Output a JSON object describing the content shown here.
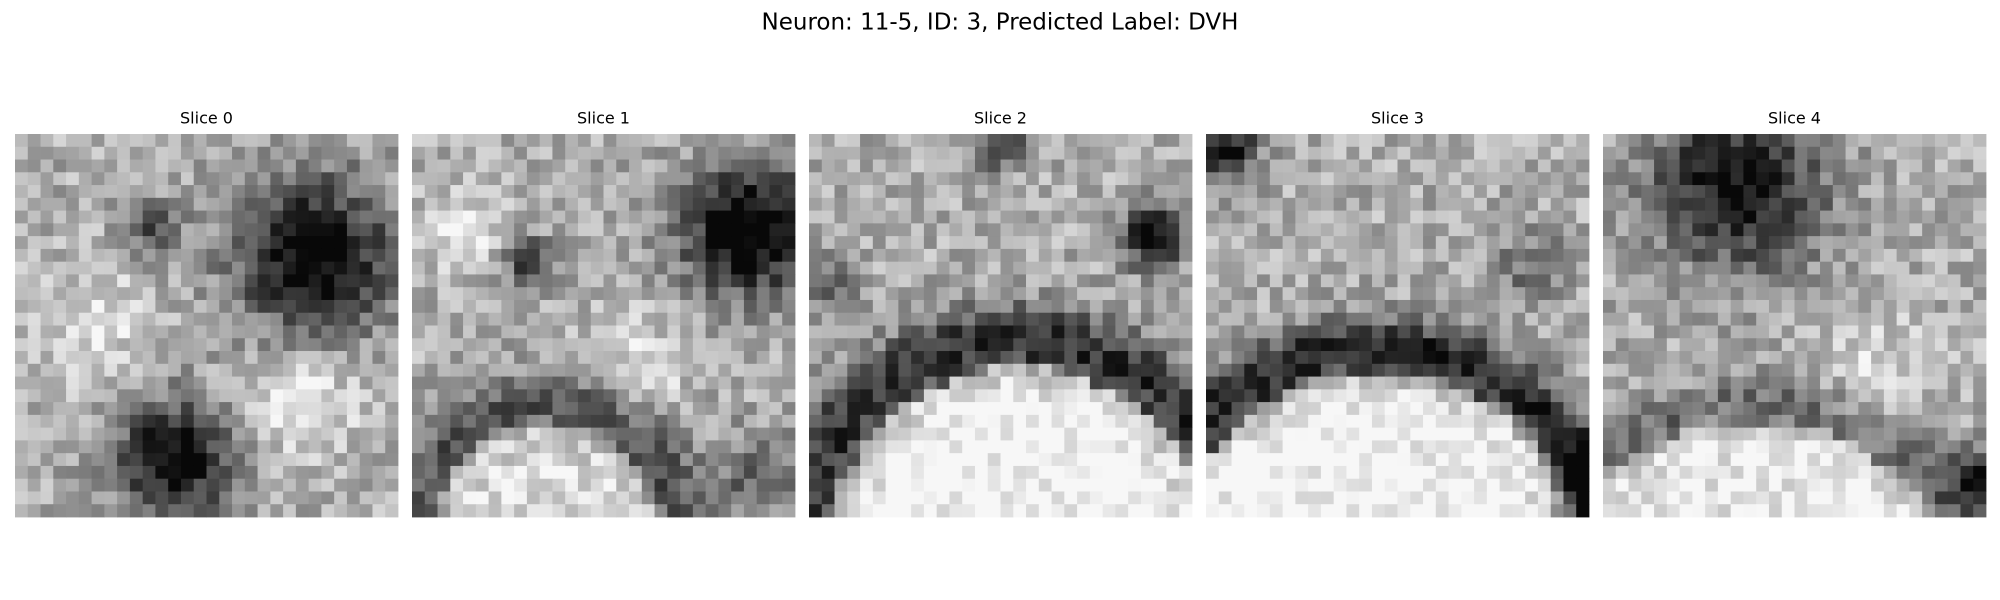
{
  "title": "Neuron: 11-5, ID: 3, Predicted Label: DVH",
  "panels": [
    {
      "title": "Slice 0"
    },
    {
      "title": "Slice 1"
    },
    {
      "title": "Slice 2"
    },
    {
      "title": "Slice 3"
    },
    {
      "title": "Slice 4"
    }
  ]
}
